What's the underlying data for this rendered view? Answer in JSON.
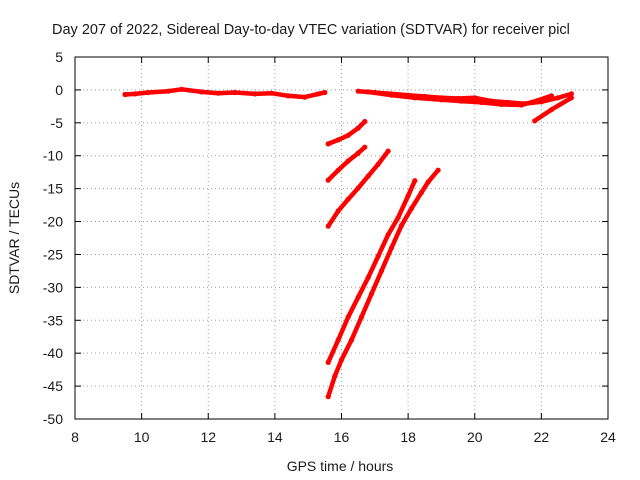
{
  "chart_data": {
    "type": "scatter",
    "title": "Day 207 of 2022, Sidereal Day-to-day VTEC variation (SDTVAR) for receiver picl",
    "xlabel": "GPS time / hours",
    "ylabel": "SDTVAR / TECUs",
    "xlim": [
      8,
      24
    ],
    "ylim": [
      -50,
      5
    ],
    "xticks": [
      "8",
      "10",
      "12",
      "14",
      "16",
      "18",
      "20",
      "22",
      "24"
    ],
    "yticks": [
      "5",
      "0",
      "-5",
      "-10",
      "-15",
      "-20",
      "-25",
      "-30",
      "-35",
      "-40",
      "-45",
      "-50"
    ],
    "grid": true,
    "series_color": "#ff0000",
    "series": [
      {
        "x": [
          9.5,
          9.8,
          10.2,
          10.8,
          11.2,
          11.8,
          12.3,
          12.8,
          13.4,
          13.9,
          14.4,
          14.9,
          15.3,
          15.5
        ],
        "y": [
          -0.7,
          -0.6,
          -0.4,
          -0.2,
          0.1,
          -0.3,
          -0.5,
          -0.4,
          -0.6,
          -0.5,
          -0.9,
          -1.1,
          -0.6,
          -0.4
        ]
      },
      {
        "x": [
          16.5,
          17.0,
          17.5,
          18.0,
          18.5,
          19.0,
          19.5,
          20.0,
          20.5,
          21.0,
          21.5,
          22.0,
          22.5,
          22.9
        ],
        "y": [
          -0.2,
          -0.4,
          -0.6,
          -0.8,
          -1.0,
          -1.2,
          -1.3,
          -1.2,
          -1.7,
          -1.9,
          -2.1,
          -1.8,
          -1.2,
          -0.6
        ]
      },
      {
        "x": [
          16.8,
          17.5,
          18.2,
          19.0,
          19.6,
          20.2,
          20.8,
          21.4,
          21.9,
          22.3
        ],
        "y": [
          -0.3,
          -0.8,
          -1.2,
          -1.5,
          -1.7,
          -1.9,
          -2.2,
          -2.3,
          -1.6,
          -0.9
        ]
      },
      {
        "x": [
          21.8,
          22.3,
          22.9
        ],
        "y": [
          -4.7,
          -3.0,
          -1.2
        ]
      },
      {
        "x": [
          15.6,
          15.9,
          16.2,
          16.5,
          16.7
        ],
        "y": [
          -8.2,
          -7.6,
          -6.9,
          -5.8,
          -4.8
        ]
      },
      {
        "x": [
          15.6,
          15.9,
          16.2,
          16.5,
          16.7
        ],
        "y": [
          -13.7,
          -12.2,
          -10.8,
          -9.6,
          -8.7
        ]
      },
      {
        "x": [
          15.6,
          15.9,
          16.2,
          16.5,
          16.8,
          17.1,
          17.4
        ],
        "y": [
          -20.7,
          -18.4,
          -16.6,
          -14.9,
          -13.1,
          -11.3,
          -9.3
        ]
      },
      {
        "x": [
          15.6,
          15.9,
          16.2,
          16.5,
          16.8,
          17.1,
          17.4,
          17.7,
          18.0,
          18.2
        ],
        "y": [
          -41.4,
          -38.0,
          -34.5,
          -31.5,
          -28.5,
          -25.3,
          -22.0,
          -19.4,
          -16.1,
          -13.8
        ]
      },
      {
        "x": [
          15.6,
          15.8,
          16.0,
          16.3,
          16.6,
          16.9,
          17.2,
          17.5,
          17.8,
          18.1,
          18.4,
          18.6,
          18.9
        ],
        "y": [
          -46.6,
          -43.5,
          -41.0,
          -38.0,
          -34.5,
          -31.0,
          -27.5,
          -24.0,
          -20.6,
          -18.0,
          -15.6,
          -14.0,
          -12.2
        ]
      }
    ]
  }
}
